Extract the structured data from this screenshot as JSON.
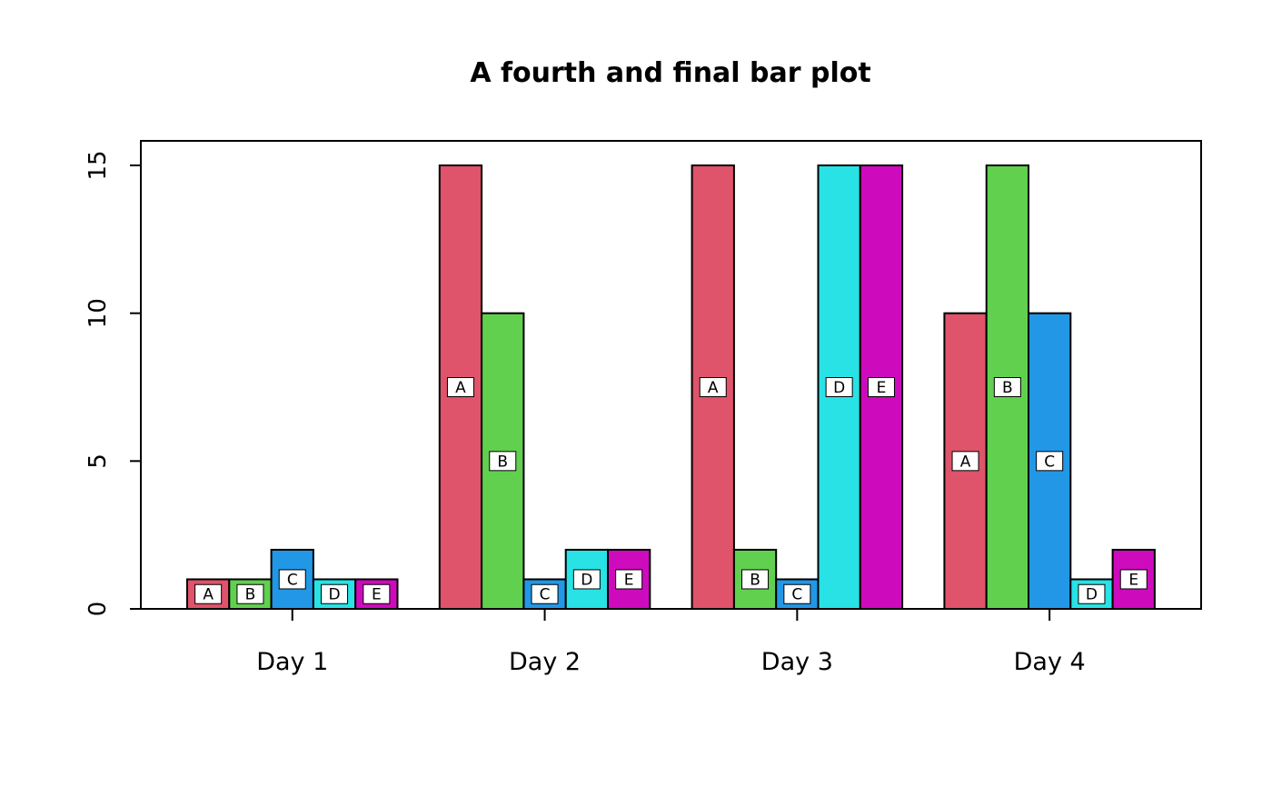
{
  "title": "A fourth and final bar plot",
  "chart_data": {
    "type": "bar",
    "title": "A fourth and final bar plot",
    "categories": [
      "Day 1",
      "Day 2",
      "Day 3",
      "Day 4"
    ],
    "series": [
      {
        "name": "A",
        "color": "#DF536B",
        "values": [
          1,
          15,
          15,
          10
        ]
      },
      {
        "name": "B",
        "color": "#61D04F",
        "values": [
          1,
          10,
          2,
          15
        ]
      },
      {
        "name": "C",
        "color": "#2297E6",
        "values": [
          2,
          1,
          1,
          10
        ]
      },
      {
        "name": "D",
        "color": "#28E2E5",
        "values": [
          1,
          2,
          15,
          1
        ]
      },
      {
        "name": "E",
        "color": "#CD0BBC",
        "values": [
          1,
          2,
          15,
          2
        ]
      }
    ],
    "bar_labels": [
      "A",
      "B",
      "C",
      "D",
      "E"
    ],
    "bar_label_style": "white box at half bar height",
    "xlabel": "",
    "ylabel": "",
    "ylim": [
      0,
      15
    ],
    "yticks": [
      0,
      5,
      10,
      15
    ],
    "grid": false,
    "legend": "none",
    "bar_border_color": "#000000",
    "background": "#ffffff"
  }
}
